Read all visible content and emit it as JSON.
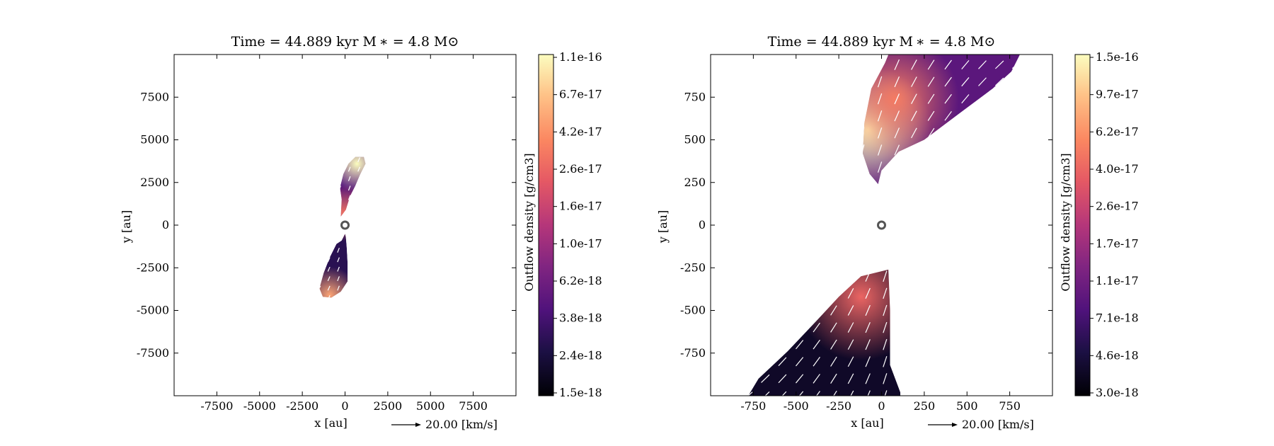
{
  "chart_data": [
    {
      "type": "heatmap",
      "title": "Time = 44.889 kyr    M ∗ = 4.8 M⊙",
      "xlabel": "x [au]",
      "ylabel": "y [au]",
      "xlim": [
        -10000,
        10000
      ],
      "ylim": [
        -10000,
        10000
      ],
      "xticks": [
        -7500,
        -5000,
        -2500,
        0,
        2500,
        5000,
        7500
      ],
      "yticks": [
        7500,
        5000,
        2500,
        0,
        -2500,
        -5000,
        -7500
      ],
      "quiver_key": "20.00 [km/s]",
      "colorbar": {
        "label": "Outflow density [g/cm3]",
        "colormap": "magma",
        "scale": "log",
        "ticks": [
          "1.1e-16",
          "6.7e-17",
          "4.2e-17",
          "2.6e-17",
          "1.6e-17",
          "1.0e-17",
          "6.2e-18",
          "3.8e-18",
          "2.4e-18",
          "1.5e-18"
        ]
      },
      "star_marker": [
        0,
        0
      ],
      "regions": [
        {
          "name": "northern lobe",
          "outline": [
            [
              -250,
              500
            ],
            [
              -200,
              1500
            ],
            [
              -300,
              2200
            ],
            [
              -100,
              3000
            ],
            [
              200,
              3600
            ],
            [
              600,
              4000
            ],
            [
              1100,
              4000
            ],
            [
              1200,
              3600
            ],
            [
              900,
              3000
            ],
            [
              600,
              2300
            ],
            [
              300,
              1700
            ],
            [
              50,
              900
            ]
          ],
          "density": 4.5e-18
        },
        {
          "name": "southern lobe",
          "outline": [
            [
              0,
              -500
            ],
            [
              -200,
              -900
            ],
            [
              -500,
              -1100
            ],
            [
              -900,
              -1900
            ],
            [
              -1250,
              -2800
            ],
            [
              -1500,
              -3700
            ],
            [
              -1300,
              -4200
            ],
            [
              -800,
              -4250
            ],
            [
              -250,
              -3900
            ],
            [
              150,
              -3300
            ],
            [
              150,
              -2200
            ],
            [
              100,
              -1300
            ],
            [
              50,
              -700
            ]
          ],
          "density": 3e-18
        }
      ],
      "hot_spots": [
        {
          "x": 700,
          "y": 3600,
          "density": 1.1e-16
        },
        {
          "x": -900,
          "y": -4100,
          "density": 5e-17
        },
        {
          "x": -50,
          "y": 700,
          "density": 3e-17
        }
      ]
    },
    {
      "type": "heatmap",
      "title": "Time = 44.889 kyr    M ∗ = 4.8 M⊙",
      "xlabel": "x [au]",
      "ylabel": "y [au]",
      "xlim": [
        -1000,
        1000
      ],
      "ylim": [
        -1000,
        1000
      ],
      "xticks": [
        -750,
        -500,
        -250,
        0,
        250,
        500,
        750
      ],
      "yticks": [
        750,
        500,
        250,
        0,
        -250,
        -500,
        -750
      ],
      "quiver_key": "20.00 [km/s]",
      "colorbar": {
        "label": "Outflow density [g/cm3]",
        "colormap": "magma",
        "scale": "log",
        "ticks": [
          "1.5e-16",
          "9.7e-17",
          "6.2e-17",
          "4.0e-17",
          "2.6e-17",
          "1.7e-17",
          "1.1e-17",
          "7.1e-18",
          "4.6e-18",
          "3.0e-18"
        ]
      },
      "star_marker": [
        0,
        0
      ],
      "regions": [
        {
          "name": "northern lobe",
          "outline": [
            [
              -20,
              240
            ],
            [
              -70,
              300
            ],
            [
              -110,
              420
            ],
            [
              -100,
              600
            ],
            [
              -60,
              800
            ],
            [
              20,
              950
            ],
            [
              40,
              1000
            ],
            [
              810,
              1000
            ],
            [
              760,
              900
            ],
            [
              650,
              800
            ],
            [
              450,
              650
            ],
            [
              250,
              500
            ],
            [
              100,
              430
            ],
            [
              0,
              320
            ]
          ],
          "density": 9e-18
        },
        {
          "name": "southern lobe",
          "outline": [
            [
              40,
              -260
            ],
            [
              50,
              -500
            ],
            [
              50,
              -820
            ],
            [
              110,
              -980
            ],
            [
              110,
              -1000
            ],
            [
              -780,
              -1000
            ],
            [
              -720,
              -900
            ],
            [
              -550,
              -740
            ],
            [
              -380,
              -560
            ],
            [
              -250,
              -420
            ],
            [
              -120,
              -300
            ]
          ],
          "density": 4e-18
        }
      ],
      "hot_spots": [
        {
          "x": -80,
          "y": 560,
          "density": 1.5e-16
        },
        {
          "x": 80,
          "y": 740,
          "density": 5e-17
        },
        {
          "x": -120,
          "y": -420,
          "density": 4e-17
        }
      ]
    }
  ]
}
